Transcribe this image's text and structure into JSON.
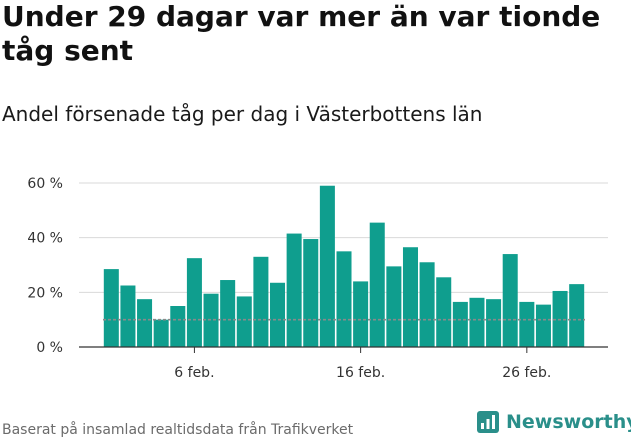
{
  "title": "Under 29 dagar var mer än var tionde tåg sent",
  "subtitle": "Andel försenade tåg per dag i Västerbottens län",
  "footer": "Baserat på insamlad realtidsdata från Trafikverket",
  "brand": {
    "name": "Newsworthy",
    "icon": "newsworthy-logo-icon",
    "color": "#2a8f8a"
  },
  "colors": {
    "bar": "#0f9e8e",
    "reference_line": "#8a8a8a",
    "grid": "#d9d9d9",
    "axis": "#333333"
  },
  "chart_data": {
    "type": "bar",
    "title": "",
    "xlabel": "",
    "ylabel": "",
    "unit": "%",
    "ylim": [
      0,
      60
    ],
    "yticks": [
      {
        "value": 0,
        "label": "0 %"
      },
      {
        "value": 20,
        "label": "20 %"
      },
      {
        "value": 40,
        "label": "40 %"
      },
      {
        "value": 60,
        "label": "60 %"
      }
    ],
    "categories": [
      "1 feb.",
      "2 feb.",
      "3 feb.",
      "4 feb.",
      "5 feb.",
      "6 feb.",
      "7 feb.",
      "8 feb.",
      "9 feb.",
      "10 feb.",
      "11 feb.",
      "12 feb.",
      "13 feb.",
      "14 feb.",
      "15 feb.",
      "16 feb.",
      "17 feb.",
      "18 feb.",
      "19 feb.",
      "20 feb.",
      "21 feb.",
      "22 feb.",
      "23 feb.",
      "24 feb.",
      "25 feb.",
      "26 feb.",
      "27 feb.",
      "28 feb.",
      "29 feb."
    ],
    "xtick_labels": [
      {
        "index": 5,
        "label": "6 feb."
      },
      {
        "index": 15,
        "label": "16 feb."
      },
      {
        "index": 25,
        "label": "26 feb."
      }
    ],
    "values": [
      28.5,
      22.5,
      17.5,
      10,
      15,
      32.5,
      19.5,
      24.5,
      18.5,
      33,
      23.5,
      41.5,
      39.5,
      59,
      35,
      24,
      45.5,
      29.5,
      36.5,
      31,
      25.5,
      16.5,
      18,
      17.5,
      34,
      16.5,
      15.5,
      20.5,
      23
    ],
    "reference_line": 10,
    "grid": true
  }
}
